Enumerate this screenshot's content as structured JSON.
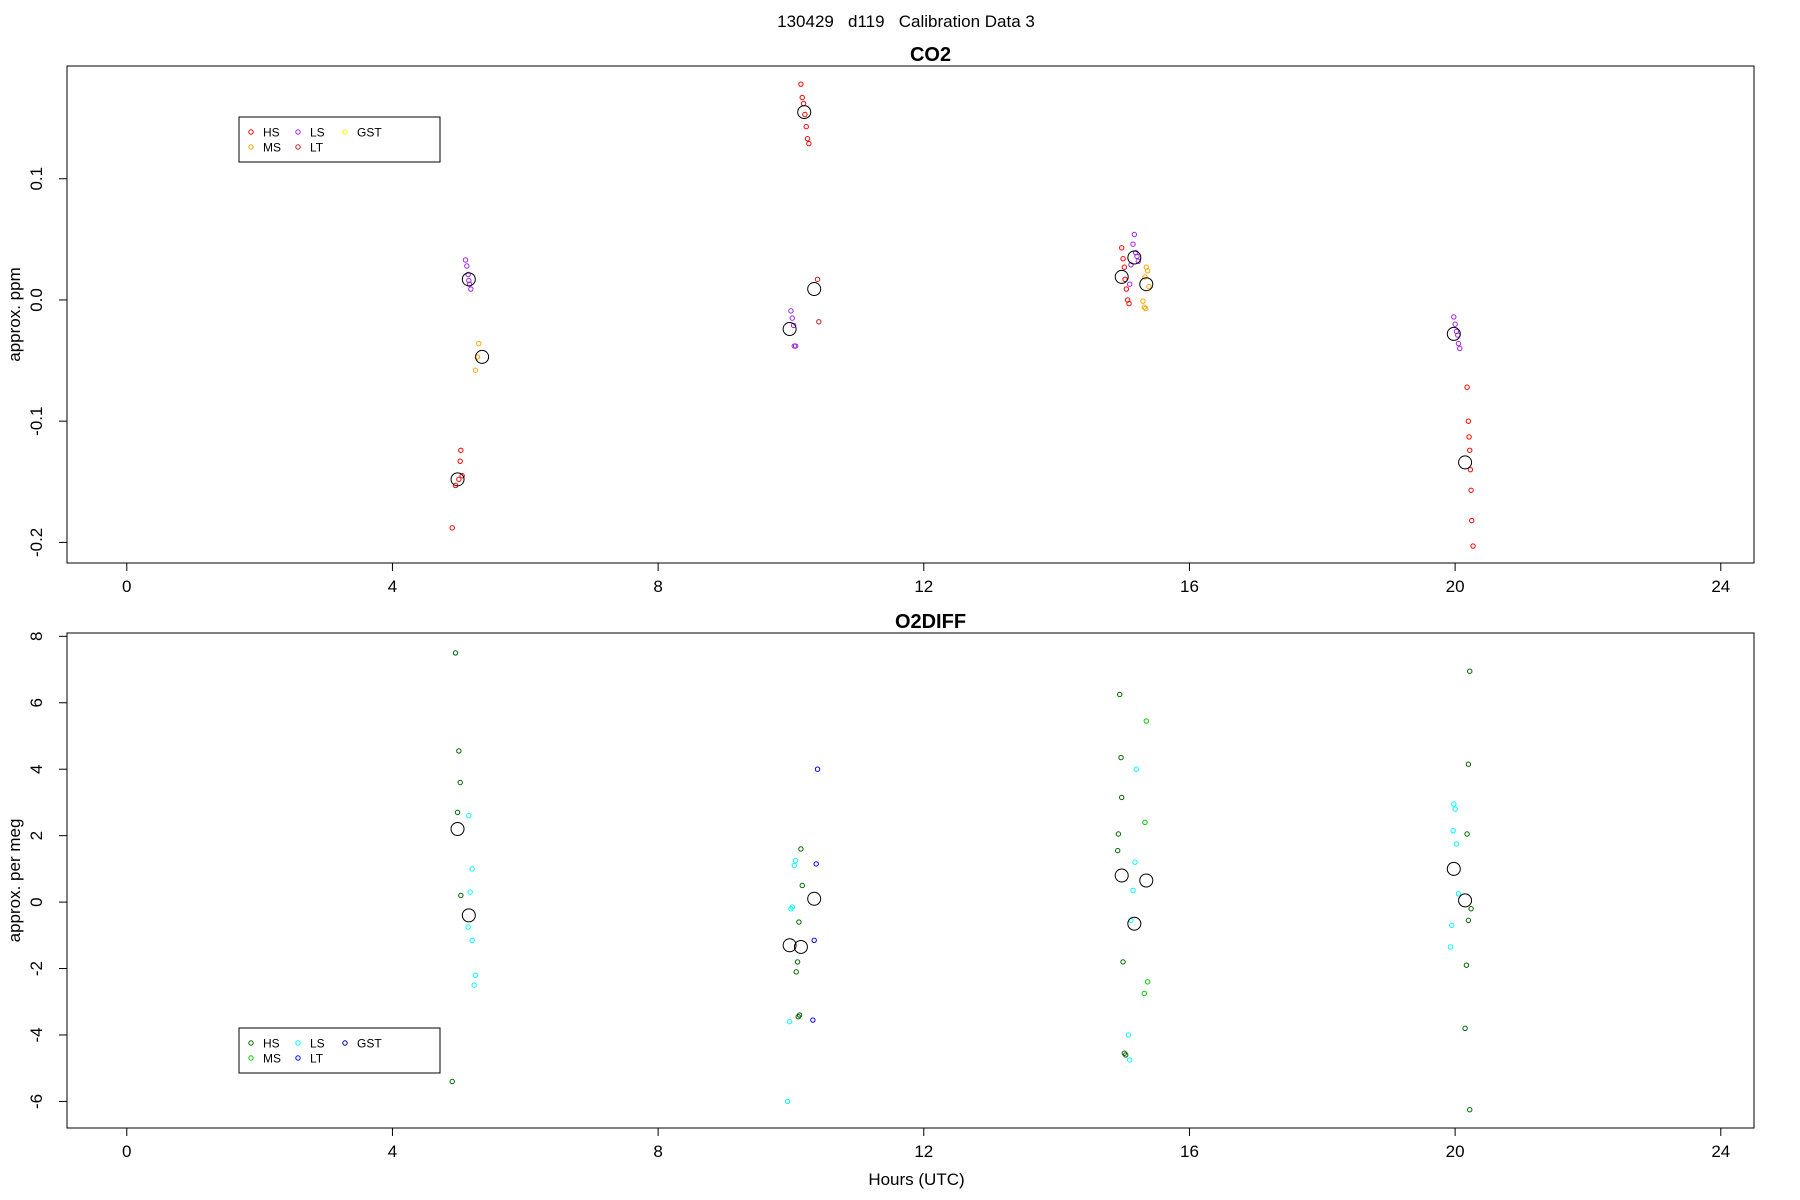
{
  "page_title": "130429   d119   Calibration Data 3",
  "chart_data": [
    {
      "type": "scatter",
      "title": "CO2",
      "xlabel": "",
      "ylabel": "approx. ppm",
      "xlim": [
        -0.9,
        24.5
      ],
      "ylim": [
        -0.217,
        0.193
      ],
      "x_ticks": [
        0,
        4,
        8,
        12,
        16,
        20,
        24
      ],
      "y_ticks": [
        -0.2,
        -0.1,
        0.0,
        0.1
      ],
      "y_tick_labels": [
        "-0.2",
        "-0.1",
        "0.0",
        "0.1"
      ],
      "legend_position": "top-left",
      "legend": [
        {
          "name": "HS",
          "color": "#ff0000"
        },
        {
          "name": "MS",
          "color": "#ffa500"
        },
        {
          "name": "LS",
          "color": "#a020f0"
        },
        {
          "name": "LT",
          "color": "#b22222"
        },
        {
          "name": "GST",
          "color": "#ffff00"
        }
      ],
      "series": [
        {
          "name": "HS",
          "color": "#ff0000",
          "points": [
            [
              4.9,
              -0.188
            ],
            [
              4.95,
              -0.153
            ],
            [
              5.0,
              -0.148
            ],
            [
              5.02,
              -0.133
            ],
            [
              5.03,
              -0.124
            ],
            [
              5.05,
              -0.145
            ],
            [
              10.15,
              0.178
            ],
            [
              10.17,
              0.167
            ],
            [
              10.19,
              0.162
            ],
            [
              10.21,
              0.153
            ],
            [
              10.23,
              0.143
            ],
            [
              10.25,
              0.133
            ],
            [
              10.27,
              0.129
            ],
            [
              14.98,
              0.043
            ],
            [
              15.0,
              0.034
            ],
            [
              15.02,
              0.027
            ],
            [
              15.03,
              0.017
            ],
            [
              15.05,
              0.009
            ],
            [
              15.07,
              0.0
            ],
            [
              15.09,
              -0.003
            ],
            [
              20.18,
              -0.072
            ],
            [
              20.2,
              -0.1
            ],
            [
              20.21,
              -0.113
            ],
            [
              20.22,
              -0.124
            ],
            [
              20.23,
              -0.14
            ],
            [
              20.24,
              -0.157
            ],
            [
              20.25,
              -0.182
            ],
            [
              20.27,
              -0.203
            ]
          ]
        },
        {
          "name": "MS",
          "color": "#ffa500",
          "points": [
            [
              5.3,
              -0.036
            ],
            [
              5.28,
              -0.047
            ],
            [
              5.25,
              -0.058
            ],
            [
              15.35,
              0.027
            ],
            [
              15.37,
              0.024
            ],
            [
              15.33,
              0.019
            ],
            [
              15.39,
              0.011
            ],
            [
              15.3,
              -0.001
            ],
            [
              15.32,
              -0.006
            ],
            [
              15.34,
              -0.007
            ]
          ]
        },
        {
          "name": "LS",
          "color": "#a020f0",
          "points": [
            [
              5.1,
              0.033
            ],
            [
              5.12,
              0.028
            ],
            [
              5.14,
              0.021
            ],
            [
              5.15,
              0.016
            ],
            [
              5.16,
              0.013
            ],
            [
              5.18,
              0.009
            ],
            [
              10.0,
              -0.009
            ],
            [
              10.02,
              -0.015
            ],
            [
              10.04,
              -0.021
            ],
            [
              10.05,
              -0.038
            ],
            [
              10.07,
              -0.038
            ],
            [
              15.15,
              0.046
            ],
            [
              15.17,
              0.054
            ],
            [
              15.19,
              0.039
            ],
            [
              15.21,
              0.036
            ],
            [
              15.23,
              0.032
            ],
            [
              15.1,
              0.013
            ],
            [
              15.12,
              0.029
            ],
            [
              19.98,
              -0.014
            ],
            [
              20.0,
              -0.02
            ],
            [
              20.02,
              -0.026
            ],
            [
              20.04,
              -0.029
            ],
            [
              20.05,
              -0.036
            ],
            [
              20.07,
              -0.04
            ]
          ]
        },
        {
          "name": "LT",
          "color": "#b22222",
          "points": [
            [
              10.4,
              0.017
            ],
            [
              10.42,
              -0.018
            ]
          ]
        },
        {
          "name": "GST",
          "color": "#ffff00",
          "points": []
        }
      ],
      "means": [
        [
          4.98,
          -0.148
        ],
        [
          5.15,
          0.017
        ],
        [
          5.35,
          -0.047
        ],
        [
          9.98,
          -0.024
        ],
        [
          10.2,
          0.155
        ],
        [
          10.35,
          0.009
        ],
        [
          14.98,
          0.019
        ],
        [
          15.17,
          0.035
        ],
        [
          15.35,
          0.013
        ],
        [
          19.98,
          -0.028
        ],
        [
          20.15,
          -0.134
        ]
      ]
    },
    {
      "type": "scatter",
      "title": "O2DIFF",
      "xlabel": "Hours (UTC)",
      "ylabel": "approx. per meg",
      "xlim": [
        -0.9,
        24.5
      ],
      "ylim": [
        -6.8,
        8.1
      ],
      "x_ticks": [
        0,
        4,
        8,
        12,
        16,
        20,
        24
      ],
      "y_ticks": [
        -6,
        -4,
        -2,
        0,
        2,
        4,
        6,
        8
      ],
      "y_tick_labels": [
        "-6",
        "-4",
        "-2",
        "0",
        "2",
        "4",
        "6",
        "8"
      ],
      "legend_position": "bottom-left",
      "legend": [
        {
          "name": "HS",
          "color": "#006400"
        },
        {
          "name": "MS",
          "color": "#00cc00"
        },
        {
          "name": "LS",
          "color": "#00ffff"
        },
        {
          "name": "LT",
          "color": "#0000ff"
        },
        {
          "name": "GST",
          "color": "#00008b"
        }
      ],
      "series": [
        {
          "name": "HS",
          "color": "#006400",
          "points": [
            [
              4.95,
              7.5
            ],
            [
              5.0,
              4.55
            ],
            [
              5.02,
              3.6
            ],
            [
              4.98,
              2.7
            ],
            [
              5.03,
              0.2
            ],
            [
              4.9,
              -5.4
            ],
            [
              10.15,
              1.6
            ],
            [
              10.17,
              0.5
            ],
            [
              10.12,
              -0.6
            ],
            [
              10.1,
              -1.8
            ],
            [
              10.08,
              -2.1
            ],
            [
              10.13,
              -3.4
            ],
            [
              10.11,
              -3.45
            ],
            [
              14.95,
              6.25
            ],
            [
              14.97,
              4.35
            ],
            [
              14.98,
              3.15
            ],
            [
              14.93,
              2.05
            ],
            [
              14.92,
              1.55
            ],
            [
              15.0,
              -1.8
            ],
            [
              15.02,
              -4.55
            ],
            [
              15.04,
              -4.6
            ],
            [
              20.22,
              6.95
            ],
            [
              20.2,
              4.15
            ],
            [
              20.18,
              2.05
            ],
            [
              20.24,
              -0.2
            ],
            [
              20.2,
              -0.55
            ],
            [
              20.17,
              -1.9
            ],
            [
              20.15,
              -3.8
            ],
            [
              20.22,
              -6.25
            ]
          ]
        },
        {
          "name": "MS",
          "color": "#00cc00",
          "points": [
            [
              15.35,
              5.45
            ],
            [
              15.33,
              2.4
            ],
            [
              15.37,
              -2.4
            ],
            [
              15.32,
              -2.75
            ]
          ]
        },
        {
          "name": "LS",
          "color": "#00ffff",
          "points": [
            [
              5.15,
              2.6
            ],
            [
              5.2,
              1.0
            ],
            [
              5.17,
              0.3
            ],
            [
              5.14,
              -0.75
            ],
            [
              5.2,
              -1.15
            ],
            [
              5.25,
              -2.2
            ],
            [
              5.23,
              -2.5
            ],
            [
              10.07,
              1.25
            ],
            [
              10.05,
              1.1
            ],
            [
              10.02,
              -0.15
            ],
            [
              10.0,
              -0.2
            ],
            [
              9.98,
              -3.6
            ],
            [
              9.95,
              -6.0
            ],
            [
              15.2,
              4.0
            ],
            [
              15.18,
              1.2
            ],
            [
              15.15,
              0.35
            ],
            [
              15.12,
              -0.55
            ],
            [
              15.08,
              -4.0
            ],
            [
              15.1,
              -4.75
            ],
            [
              19.98,
              2.95
            ],
            [
              20.0,
              2.8
            ],
            [
              19.97,
              2.15
            ],
            [
              20.02,
              1.75
            ],
            [
              20.05,
              0.25
            ],
            [
              19.95,
              -0.7
            ],
            [
              19.93,
              -1.35
            ]
          ]
        },
        {
          "name": "LT",
          "color": "#0000ff",
          "points": [
            [
              10.4,
              4.0
            ],
            [
              10.38,
              1.15
            ],
            [
              10.35,
              -1.15
            ],
            [
              10.33,
              -3.55
            ]
          ]
        },
        {
          "name": "GST",
          "color": "#00008b",
          "points": []
        }
      ],
      "means": [
        [
          4.98,
          2.2
        ],
        [
          5.15,
          -0.4
        ],
        [
          9.98,
          -1.3
        ],
        [
          10.15,
          -1.35
        ],
        [
          10.35,
          0.1
        ],
        [
          14.98,
          0.8
        ],
        [
          15.17,
          -0.65
        ],
        [
          15.35,
          0.65
        ],
        [
          19.98,
          1.0
        ],
        [
          20.15,
          0.05
        ]
      ]
    }
  ]
}
